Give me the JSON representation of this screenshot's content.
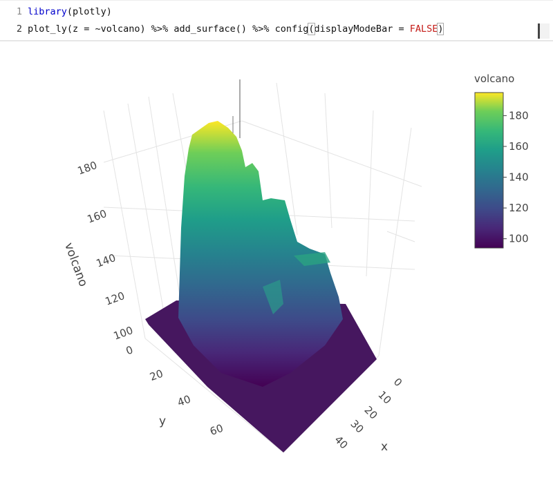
{
  "editor": {
    "lines": [
      {
        "number": "1",
        "tokens": [
          "library",
          "(plotly)"
        ]
      },
      {
        "number": "2",
        "tokens": [
          "plot_ly(z = ~volcano) %>% add_surface() %>% config",
          "(",
          "displayModeBar = ",
          "FALSE",
          ")"
        ]
      }
    ]
  },
  "plot": {
    "zaxis": {
      "title": "volcano",
      "ticks": [
        100,
        120,
        140,
        160,
        180
      ]
    },
    "yaxis": {
      "title": "y",
      "ticks": [
        0,
        20,
        40,
        60
      ]
    },
    "xaxis": {
      "title": "x",
      "ticks": [
        0,
        10,
        20,
        30,
        40
      ]
    },
    "colorbar": {
      "title": "volcano",
      "range": [
        94,
        195
      ],
      "ticks": [
        100,
        120,
        140,
        160,
        180
      ]
    }
  }
}
